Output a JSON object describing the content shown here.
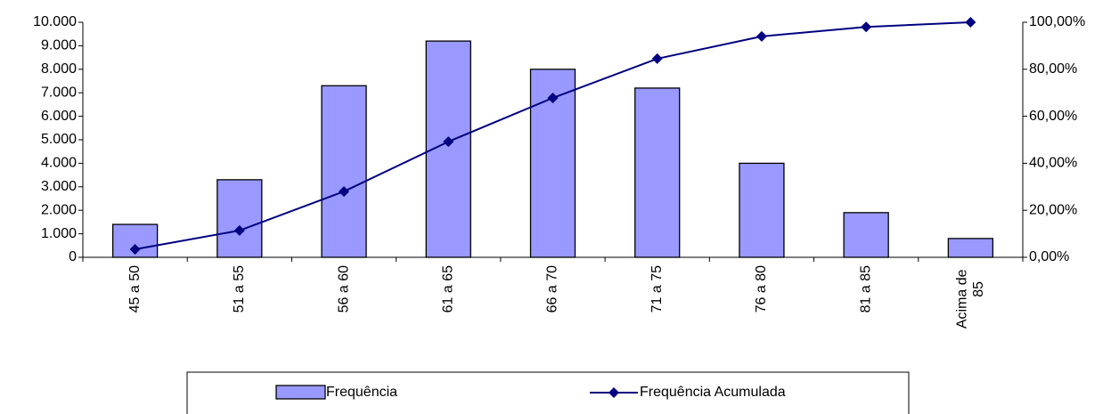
{
  "chart_data": {
    "type": "bar_line",
    "categories": [
      "45 a 50",
      "51 a 55",
      "56 a 60",
      "61 a 65",
      "66 a 70",
      "71 a 75",
      "76 a 80",
      "81 a 85",
      "Acima de 85"
    ],
    "series": [
      {
        "name": "Frequência",
        "color": "#9999ff",
        "values": [
          1400,
          3300,
          7300,
          9200,
          8000,
          7200,
          4000,
          1900,
          800
        ]
      },
      {
        "name": "Frequência Acumulada",
        "color": "#000080",
        "axis": "y2",
        "values": [
          3.4,
          11.4,
          28,
          49.2,
          67.8,
          84.5,
          94,
          98,
          100
        ]
      }
    ],
    "ylim": [
      0,
      10000
    ],
    "yticks": [
      0,
      {
        "value": 1000,
        "label": "1.000"
      },
      {
        "value": 2000,
        "label": "2.000"
      },
      {
        "value": 3000,
        "label": "3.000"
      },
      {
        "value": 4000,
        "label": "4.000"
      },
      {
        "value": 5000,
        "label": "5.000"
      },
      {
        "value": 6000,
        "label": "6.000"
      },
      {
        "value": 7000,
        "label": "7.000"
      },
      {
        "value": 8000,
        "label": "8.000"
      },
      {
        "value": 9000,
        "label": "9.000"
      },
      {
        "value": 10000,
        "label": "10.000"
      }
    ],
    "y2lim": [
      0,
      100
    ],
    "y2ticks": [
      {
        "value": 0,
        "label": "0,00%"
      },
      {
        "value": 20,
        "label": "20,00%"
      },
      {
        "value": 40,
        "label": "40,00%"
      },
      {
        "value": 60,
        "label": "60,00%"
      },
      {
        "value": 80,
        "label": "80,00%"
      },
      {
        "value": 100,
        "label": "100,00%"
      }
    ],
    "legend": "bottom"
  }
}
